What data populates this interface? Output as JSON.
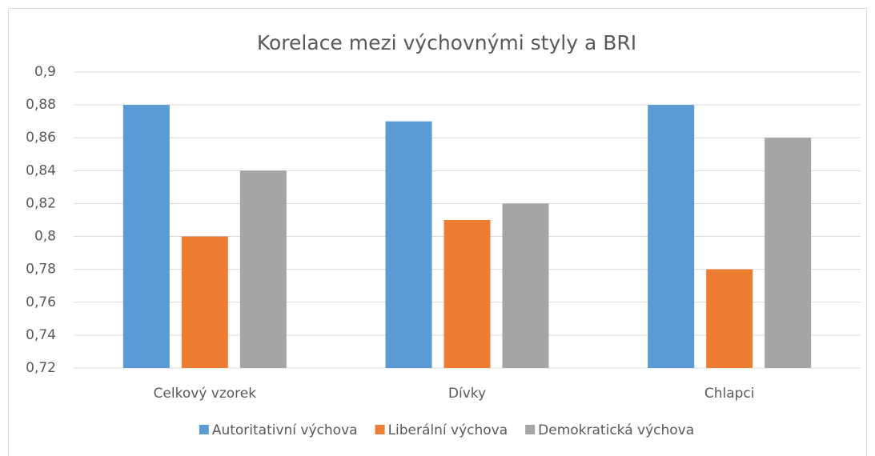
{
  "chart_data": {
    "type": "bar",
    "title": "Korelace mezi výchovnými styly a BRI",
    "categories": [
      "Celkový vzorek",
      "Dívky",
      "Chlapci"
    ],
    "series": [
      {
        "name": "Autoritativní výchova",
        "color": "#5b9bd5",
        "values": [
          0.88,
          0.87,
          0.88
        ]
      },
      {
        "name": "Liberální výchova",
        "color": "#ed7d31",
        "values": [
          0.8,
          0.81,
          0.78
        ]
      },
      {
        "name": "Demokratická výchova",
        "color": "#a5a5a5",
        "values": [
          0.84,
          0.82,
          0.86
        ]
      }
    ],
    "ylim": [
      0.72,
      0.9
    ],
    "yticks": [
      {
        "value": 0.72,
        "label": "0,72"
      },
      {
        "value": 0.74,
        "label": "0,74"
      },
      {
        "value": 0.76,
        "label": "0,76"
      },
      {
        "value": 0.78,
        "label": "0,78"
      },
      {
        "value": 0.8,
        "label": "0,8"
      },
      {
        "value": 0.82,
        "label": "0,82"
      },
      {
        "value": 0.84,
        "label": "0,84"
      },
      {
        "value": 0.86,
        "label": "0,86"
      },
      {
        "value": 0.88,
        "label": "0,88"
      },
      {
        "value": 0.9,
        "label": "0,9"
      }
    ],
    "grid": true,
    "legend": "bottom"
  }
}
